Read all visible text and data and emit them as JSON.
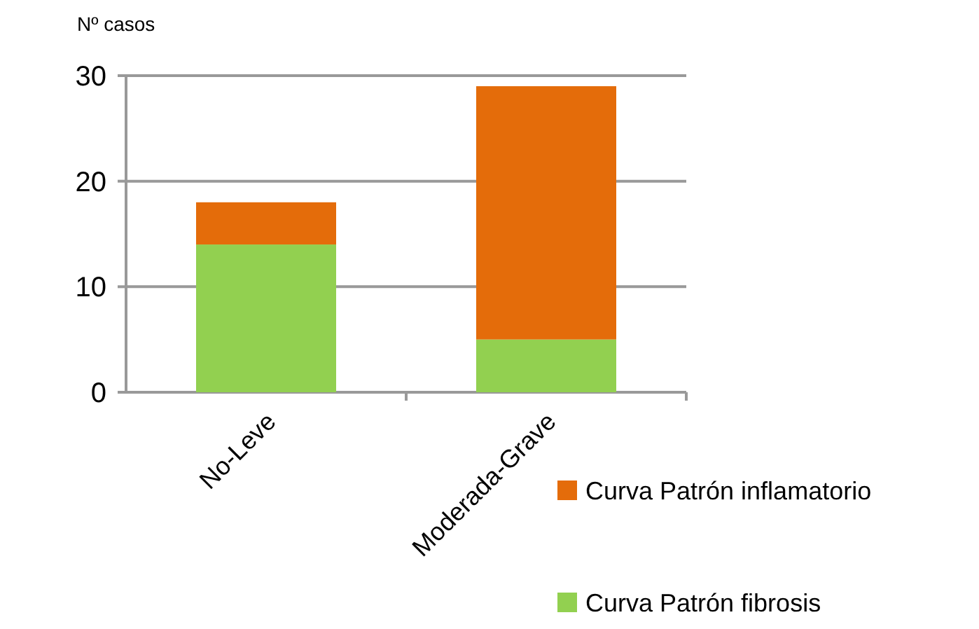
{
  "chart_data": {
    "type": "bar",
    "stacked": true,
    "ylabel": "Nº casos",
    "categories": [
      "No-Leve",
      "Moderada-Grave"
    ],
    "series": [
      {
        "name": "Curva Patrón fibrosis",
        "color": "#92d050",
        "values": [
          14,
          5
        ]
      },
      {
        "name": "Curva Patrón inflamatorio",
        "color": "#e46c0a",
        "values": [
          4,
          24
        ]
      }
    ],
    "ylim": [
      0,
      30
    ],
    "yticks": [
      0,
      10,
      20,
      30
    ],
    "grid": "y",
    "legend": "right"
  }
}
